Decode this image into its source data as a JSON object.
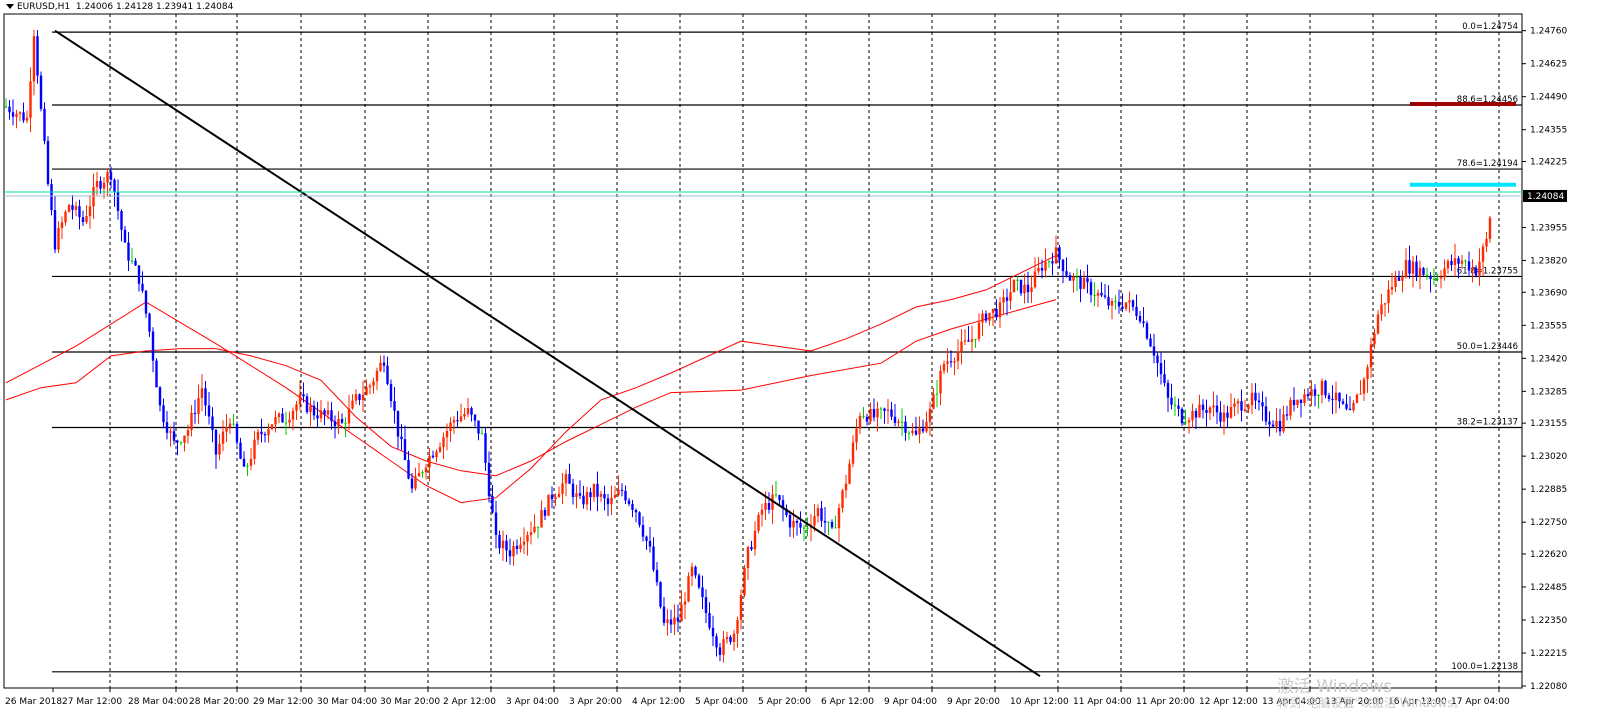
{
  "header": {
    "symbol": "EURUSD,H1",
    "ohlc": "1.24006 1.24128 1.23941 1.24084"
  },
  "watermark": {
    "line1": "激活 Windows",
    "line2": "转到\"电脑设置\"以激活 Windows。"
  },
  "colors": {
    "bull": "#ff2a00",
    "bear": "#0000ff",
    "doji": "#00cc00",
    "ma": "#ff0000",
    "grid": "#000000",
    "trendline": "#000000",
    "bid_line": "#00e0a0",
    "ask_line": "#a8bcd0",
    "marker_red": "#a00000",
    "marker_cyan": "#00e5ff"
  },
  "chart_data": {
    "type": "candlestick",
    "symbol": "EURUSD",
    "timeframe": "H1",
    "current_price": "1.24084",
    "y_range": [
      1.2208,
      1.2482
    ],
    "x_ticks": [
      "26 Mar 2018",
      "27 Mar 12:00",
      "28 Mar 04:00",
      "28 Mar 20:00",
      "29 Mar 12:00",
      "30 Mar 04:00",
      "30 Mar 20:00",
      "2 Apr 12:00",
      "3 Apr 04:00",
      "3 Apr 20:00",
      "4 Apr 12:00",
      "5 Apr 04:00",
      "5 Apr 20:00",
      "6 Apr 12:00",
      "9 Apr 04:00",
      "9 Apr 20:00",
      "10 Apr 12:00",
      "11 Apr 04:00",
      "11 Apr 20:00",
      "12 Apr 12:00",
      "13 Apr 04:00",
      "13 Apr 20:00",
      "16 Apr 12:00",
      "17 Apr 04:00"
    ],
    "y_ticks": [
      "1.24760",
      "1.24625",
      "1.24490",
      "1.24355",
      "1.24225",
      "1.24084",
      "1.23955",
      "1.23820",
      "1.23690",
      "1.23555",
      "1.23420",
      "1.23285",
      "1.23155",
      "1.23020",
      "1.22885",
      "1.22750",
      "1.22620",
      "1.22485",
      "1.22350",
      "1.22215",
      "1.22080"
    ],
    "fibonacci": [
      {
        "label": "0.0=1.24754",
        "price": 1.24754
      },
      {
        "label": "88.6=1.24456",
        "price": 1.24456
      },
      {
        "label": "78.6=1.24194",
        "price": 1.24194
      },
      {
        "label": "61.8=1.23755",
        "price": 1.23755
      },
      {
        "label": "50.0=1.23446",
        "price": 1.23446
      },
      {
        "label": "38.2=1.23137",
        "price": 1.23137
      },
      {
        "label": "100.0=1.22138",
        "price": 1.22138
      }
    ],
    "trendline": {
      "from": {
        "bar": 7,
        "price": 1.2476
      },
      "to": {
        "bar": 147,
        "price": 1.2212
      }
    },
    "markers": [
      {
        "color": "red",
        "price": 1.2446
      },
      {
        "color": "cyan",
        "price": 1.2413
      }
    ],
    "bid_price": 1.241,
    "ask_price": 1.24084,
    "moving_averages": [
      {
        "points": [
          [
            0,
            1.2325
          ],
          [
            10,
            1.233
          ],
          [
            20,
            1.2332
          ],
          [
            30,
            1.2343
          ],
          [
            40,
            1.2345
          ],
          [
            50,
            1.2346
          ],
          [
            60,
            1.2346
          ],
          [
            70,
            1.2343
          ],
          [
            80,
            1.2339
          ],
          [
            90,
            1.2333
          ],
          [
            100,
            1.2318
          ],
          [
            110,
            1.2306
          ],
          [
            120,
            1.23
          ],
          [
            130,
            1.2296
          ],
          [
            140,
            1.2294
          ],
          [
            150,
            1.23
          ],
          [
            160,
            1.2308
          ],
          [
            170,
            1.2315
          ],
          [
            180,
            1.2322
          ],
          [
            190,
            1.2328
          ],
          [
            210,
            1.2329
          ],
          [
            230,
            1.2335
          ],
          [
            250,
            1.234
          ],
          [
            260,
            1.2349
          ],
          [
            270,
            1.2354
          ],
          [
            280,
            1.2358
          ],
          [
            290,
            1.2362
          ],
          [
            300,
            1.2366
          ]
        ]
      },
      {
        "points": [
          [
            0,
            1.2332
          ],
          [
            20,
            1.2347
          ],
          [
            40,
            1.2365
          ],
          [
            60,
            1.2348
          ],
          [
            80,
            1.233
          ],
          [
            100,
            1.231
          ],
          [
            120,
            1.229
          ],
          [
            130,
            1.2283
          ],
          [
            140,
            1.2285
          ],
          [
            150,
            1.2297
          ],
          [
            160,
            1.2312
          ],
          [
            170,
            1.2325
          ],
          [
            180,
            1.233
          ],
          [
            190,
            1.2336
          ],
          [
            210,
            1.2349
          ],
          [
            230,
            1.2345
          ],
          [
            240,
            1.235
          ],
          [
            250,
            1.2356
          ],
          [
            260,
            1.2363
          ],
          [
            270,
            1.2366
          ],
          [
            280,
            1.237
          ],
          [
            300,
            1.2384
          ]
        ]
      }
    ],
    "price_path": [
      [
        0,
        1.2445
      ],
      [
        6,
        1.244
      ],
      [
        8,
        1.2476
      ],
      [
        10,
        1.2443
      ],
      [
        12,
        1.2413
      ],
      [
        14,
        1.2389
      ],
      [
        18,
        1.2405
      ],
      [
        22,
        1.2398
      ],
      [
        26,
        1.2413
      ],
      [
        30,
        1.2418
      ],
      [
        34,
        1.2387
      ],
      [
        38,
        1.2375
      ],
      [
        41,
        1.2353
      ],
      [
        44,
        1.2322
      ],
      [
        48,
        1.2307
      ],
      [
        52,
        1.2313
      ],
      [
        56,
        1.233
      ],
      [
        60,
        1.2303
      ],
      [
        64,
        1.2318
      ],
      [
        68,
        1.2295
      ],
      [
        72,
        1.231
      ],
      [
        76,
        1.2316
      ],
      [
        80,
        1.2318
      ],
      [
        84,
        1.2325
      ],
      [
        88,
        1.232
      ],
      [
        92,
        1.2318
      ],
      [
        96,
        1.2315
      ],
      [
        100,
        1.2325
      ],
      [
        104,
        1.2331
      ],
      [
        108,
        1.2342
      ],
      [
        112,
        1.2312
      ],
      [
        116,
        1.2288
      ],
      [
        120,
        1.23
      ],
      [
        124,
        1.2308
      ],
      [
        128,
        1.2317
      ],
      [
        132,
        1.232
      ],
      [
        136,
        1.231
      ],
      [
        140,
        1.2267
      ],
      [
        144,
        1.2263
      ],
      [
        148,
        1.227
      ],
      [
        152,
        1.2275
      ],
      [
        156,
        1.2286
      ],
      [
        160,
        1.2292
      ],
      [
        164,
        1.2283
      ],
      [
        168,
        1.2288
      ],
      [
        172,
        1.2282
      ],
      [
        176,
        1.2288
      ],
      [
        180,
        1.228
      ],
      [
        184,
        1.2263
      ],
      [
        188,
        1.2233
      ],
      [
        192,
        1.2235
      ],
      [
        196,
        1.2255
      ],
      [
        200,
        1.2238
      ],
      [
        204,
        1.2223
      ],
      [
        208,
        1.223
      ],
      [
        212,
        1.2262
      ],
      [
        216,
        1.228
      ],
      [
        220,
        1.2285
      ],
      [
        224,
        1.2275
      ],
      [
        228,
        1.2272
      ],
      [
        232,
        1.228
      ],
      [
        236,
        1.227
      ],
      [
        240,
        1.2292
      ],
      [
        244,
        1.232
      ],
      [
        248,
        1.2318
      ],
      [
        252,
        1.232
      ],
      [
        256,
        1.2316
      ],
      [
        260,
        1.231
      ],
      [
        264,
        1.232
      ],
      [
        268,
        1.234
      ],
      [
        272,
        1.2345
      ],
      [
        276,
        1.235
      ],
      [
        280,
        1.236
      ],
      [
        284,
        1.2362
      ],
      [
        288,
        1.2372
      ],
      [
        292,
        1.237
      ],
      [
        296,
        1.238
      ],
      [
        300,
        1.2385
      ],
      [
        304,
        1.2375
      ],
      [
        308,
        1.2372
      ],
      [
        312,
        1.2368
      ],
      [
        316,
        1.2363
      ],
      [
        320,
        1.2365
      ],
      [
        324,
        1.236
      ],
      [
        328,
        1.2345
      ],
      [
        332,
        1.2325
      ],
      [
        336,
        1.2318
      ],
      [
        340,
        1.232
      ],
      [
        344,
        1.2322
      ],
      [
        348,
        1.2318
      ],
      [
        352,
        1.2323
      ],
      [
        356,
        1.2325
      ],
      [
        360,
        1.2318
      ],
      [
        364,
        1.2315
      ],
      [
        368,
        1.2325
      ],
      [
        372,
        1.2328
      ],
      [
        376,
        1.233
      ],
      [
        380,
        1.2325
      ],
      [
        384,
        1.2318
      ],
      [
        388,
        1.2333
      ],
      [
        392,
        1.236
      ],
      [
        396,
        1.2372
      ],
      [
        400,
        1.238
      ],
      [
        404,
        1.2378
      ],
      [
        408,
        1.2375
      ],
      [
        412,
        1.238
      ],
      [
        416,
        1.2382
      ],
      [
        420,
        1.2378
      ],
      [
        423,
        1.239
      ],
      [
        425,
        1.241
      ]
    ]
  }
}
